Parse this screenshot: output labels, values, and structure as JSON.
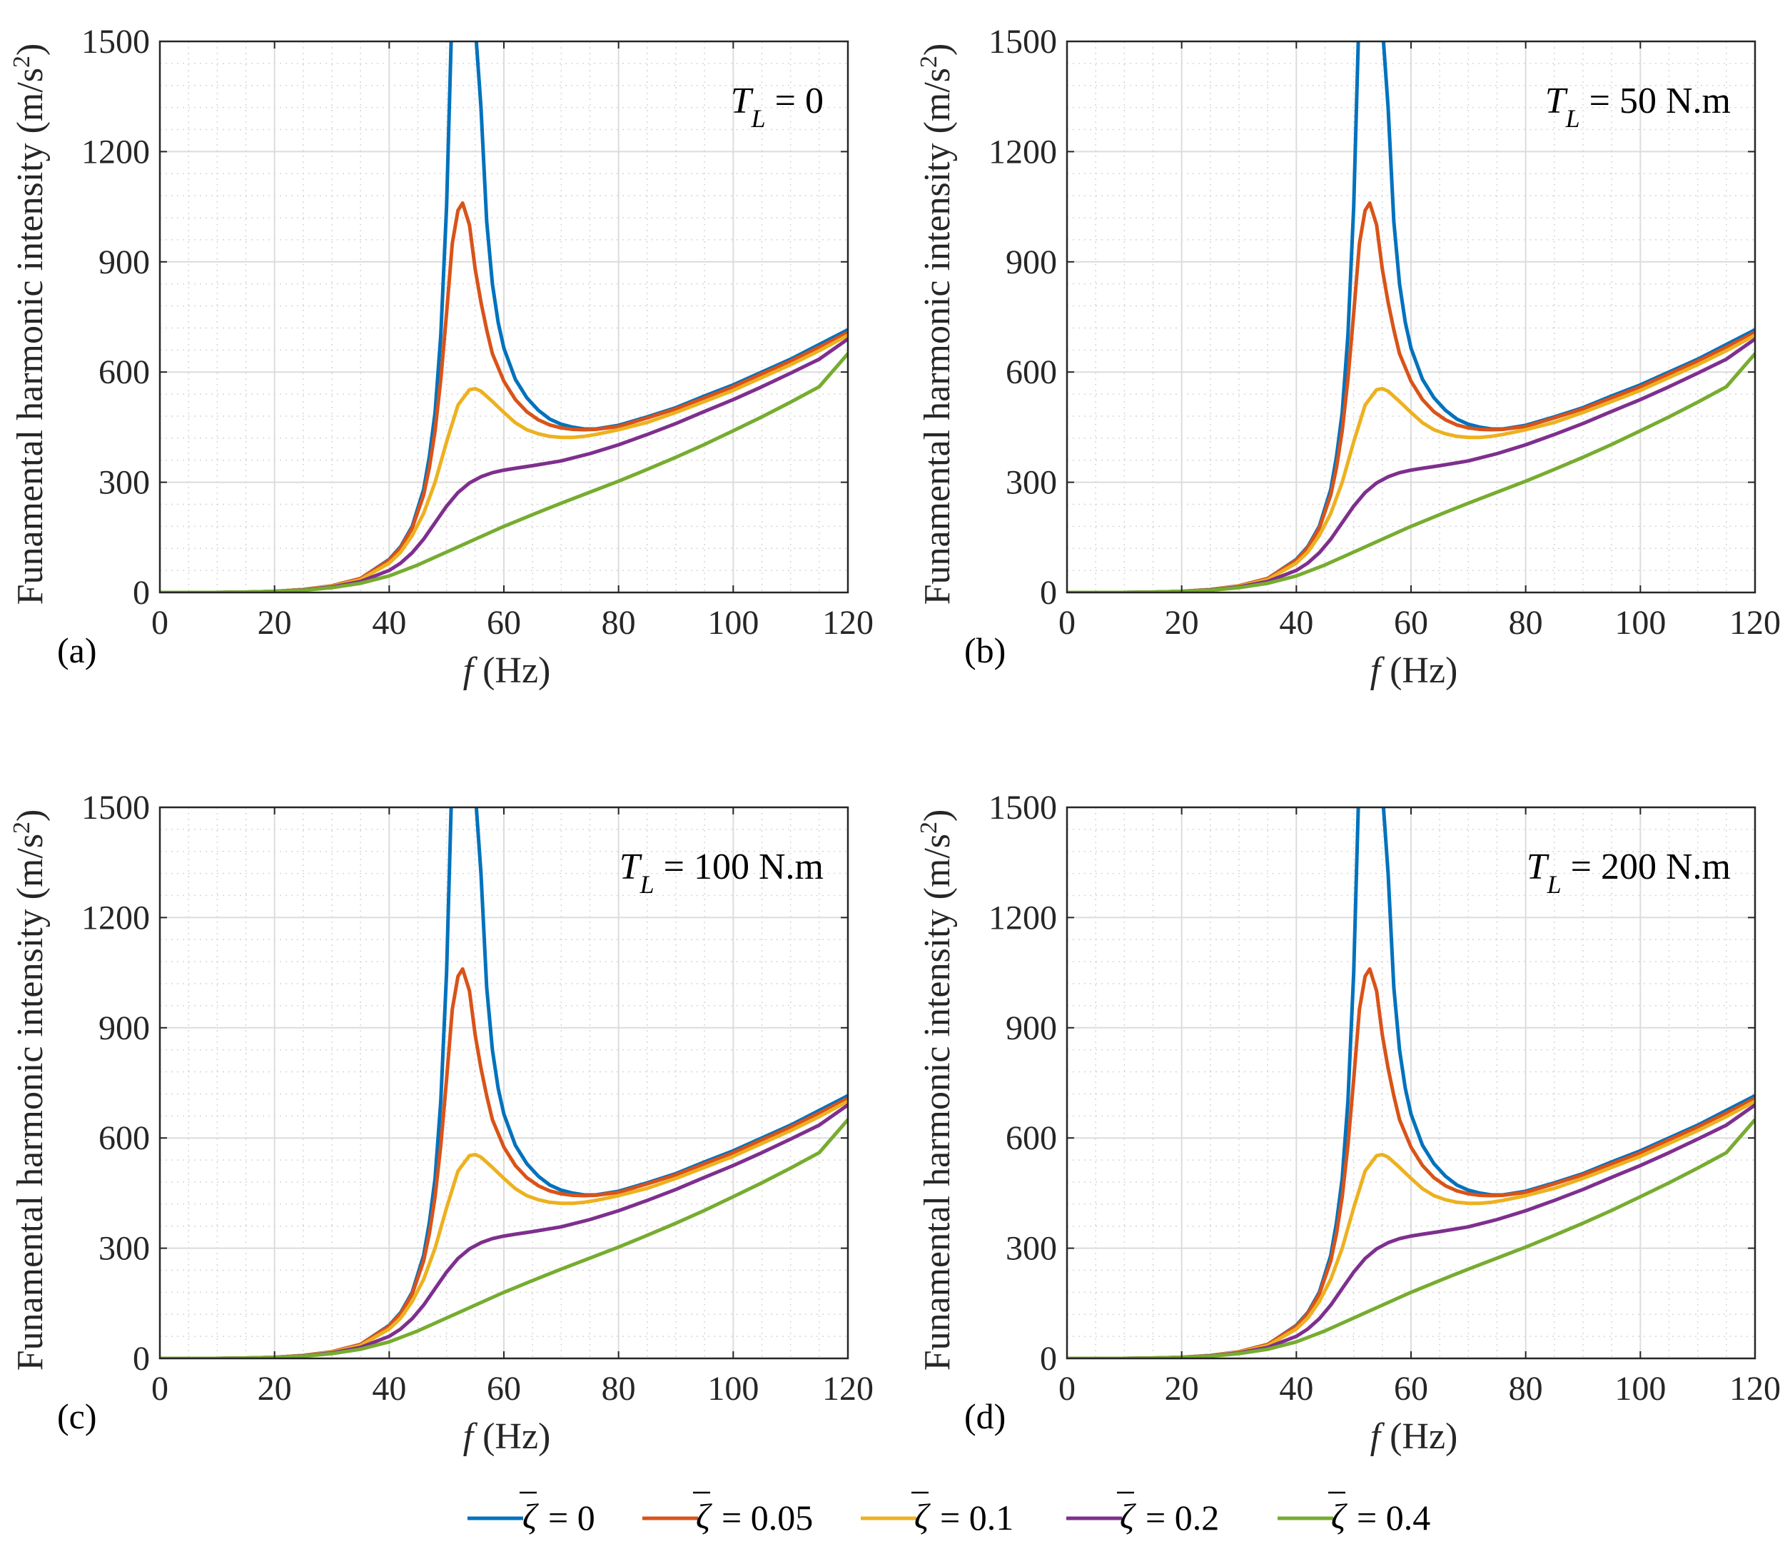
{
  "chart_data": [
    {
      "type": "line",
      "panel_label": "(a)",
      "annotation": {
        "symbol": "T",
        "subscript": "L",
        "value": "= 0"
      },
      "xlabel": {
        "italic": "f",
        "text": "(Hz)"
      },
      "ylabel": {
        "text": "Funamental harmonic intensity (m/s",
        "sup": "2",
        "close": ")"
      },
      "xlim": [
        0,
        120
      ],
      "ylim": [
        0,
        1500
      ],
      "xticks": [
        "0",
        "20",
        "40",
        "60",
        "80",
        "100",
        "120"
      ],
      "yticks": [
        "0",
        "300",
        "600",
        "900",
        "1200",
        "1500"
      ],
      "grid": true
    },
    {
      "type": "line",
      "panel_label": "(b)",
      "annotation": {
        "symbol": "T",
        "subscript": "L",
        "value": "= 50 N.m"
      },
      "xlabel": {
        "italic": "f",
        "text": "(Hz)"
      },
      "ylabel": {
        "text": "Funamental harmonic intensity (m/s",
        "sup": "2",
        "close": ")"
      },
      "xlim": [
        0,
        120
      ],
      "ylim": [
        0,
        1500
      ],
      "xticks": [
        "0",
        "20",
        "40",
        "60",
        "80",
        "100",
        "120"
      ],
      "yticks": [
        "0",
        "300",
        "600",
        "900",
        "1200",
        "1500"
      ],
      "grid": true
    },
    {
      "type": "line",
      "panel_label": "(c)",
      "annotation": {
        "symbol": "T",
        "subscript": "L",
        "value": "= 100 N.m"
      },
      "xlabel": {
        "italic": "f",
        "text": "(Hz)"
      },
      "ylabel": {
        "text": "Funamental harmonic intensity (m/s",
        "sup": "2",
        "close": ")"
      },
      "xlim": [
        0,
        120
      ],
      "ylim": [
        0,
        1500
      ],
      "xticks": [
        "0",
        "20",
        "40",
        "60",
        "80",
        "100",
        "120"
      ],
      "yticks": [
        "0",
        "300",
        "600",
        "900",
        "1200",
        "1500"
      ],
      "grid": true
    },
    {
      "type": "line",
      "panel_label": "(d)",
      "annotation": {
        "symbol": "T",
        "subscript": "L",
        "value": "= 200 N.m"
      },
      "xlabel": {
        "italic": "f",
        "text": "(Hz)"
      },
      "ylabel": {
        "text": "Funamental harmonic intensity (m/s",
        "sup": "2",
        "close": ")"
      },
      "xlim": [
        0,
        120
      ],
      "ylim": [
        0,
        1500
      ],
      "xticks": [
        "0",
        "20",
        "40",
        "60",
        "80",
        "100",
        "120"
      ],
      "yticks": [
        "0",
        "300",
        "600",
        "900",
        "1200",
        "1500"
      ],
      "grid": true
    }
  ],
  "series": [
    {
      "name": "ζ̄ = 0",
      "label_value": "= 0",
      "color": "#0072BD",
      "segments": [
        [
          [
            0,
            0
          ],
          [
            10,
            0
          ],
          [
            15,
            1
          ],
          [
            20,
            3
          ],
          [
            25,
            8
          ],
          [
            30,
            18
          ],
          [
            35,
            38
          ],
          [
            40,
            90
          ],
          [
            42,
            125
          ],
          [
            44,
            180
          ],
          [
            46,
            280
          ],
          [
            47,
            370
          ],
          [
            48,
            490
          ],
          [
            49,
            700
          ],
          [
            50,
            1050
          ],
          [
            50.8,
            1500
          ]
        ],
        [
          [
            55.2,
            1500
          ],
          [
            56,
            1320
          ],
          [
            57,
            1010
          ],
          [
            58,
            840
          ],
          [
            59,
            735
          ],
          [
            60,
            665
          ],
          [
            62,
            580
          ],
          [
            64,
            530
          ],
          [
            66,
            496
          ],
          [
            68,
            472
          ],
          [
            70,
            458
          ],
          [
            72,
            450
          ],
          [
            74,
            445
          ],
          [
            76,
            445
          ],
          [
            80,
            455
          ],
          [
            85,
            478
          ],
          [
            90,
            503
          ],
          [
            95,
            535
          ],
          [
            100,
            565
          ],
          [
            105,
            600
          ],
          [
            110,
            635
          ],
          [
            115,
            675
          ],
          [
            120,
            715
          ]
        ]
      ]
    },
    {
      "name": "ζ̄ = 0.05",
      "label_value": "= 0.05",
      "color": "#D95319",
      "segments": [
        [
          [
            0,
            0
          ],
          [
            10,
            0
          ],
          [
            15,
            1
          ],
          [
            20,
            3
          ],
          [
            25,
            8
          ],
          [
            30,
            18
          ],
          [
            35,
            38
          ],
          [
            40,
            88
          ],
          [
            42,
            122
          ],
          [
            44,
            175
          ],
          [
            46,
            265
          ],
          [
            47,
            340
          ],
          [
            48,
            440
          ],
          [
            49,
            580
          ],
          [
            50,
            760
          ],
          [
            51,
            950
          ],
          [
            52,
            1040
          ],
          [
            52.8,
            1060
          ],
          [
            54,
            1000
          ],
          [
            55,
            880
          ],
          [
            56,
            790
          ],
          [
            57,
            715
          ],
          [
            58,
            650
          ],
          [
            60,
            575
          ],
          [
            62,
            525
          ],
          [
            64,
            492
          ],
          [
            66,
            470
          ],
          [
            68,
            456
          ],
          [
            70,
            448
          ],
          [
            72,
            444
          ],
          [
            74,
            443
          ],
          [
            76,
            444
          ],
          [
            80,
            452
          ],
          [
            85,
            475
          ],
          [
            90,
            500
          ],
          [
            95,
            530
          ],
          [
            100,
            560
          ],
          [
            105,
            595
          ],
          [
            110,
            630
          ],
          [
            115,
            668
          ],
          [
            120,
            708
          ]
        ]
      ]
    },
    {
      "name": "ζ̄ = 0.1",
      "label_value": "= 0.1",
      "color": "#EDB120",
      "segments": [
        [
          [
            0,
            0
          ],
          [
            10,
            0
          ],
          [
            15,
            1
          ],
          [
            20,
            3
          ],
          [
            25,
            8
          ],
          [
            30,
            17
          ],
          [
            35,
            35
          ],
          [
            40,
            80
          ],
          [
            42,
            110
          ],
          [
            44,
            155
          ],
          [
            46,
            215
          ],
          [
            48,
            300
          ],
          [
            50,
            410
          ],
          [
            52,
            510
          ],
          [
            54,
            552
          ],
          [
            55,
            555
          ],
          [
            56,
            548
          ],
          [
            58,
            520
          ],
          [
            60,
            490
          ],
          [
            62,
            462
          ],
          [
            64,
            443
          ],
          [
            66,
            432
          ],
          [
            68,
            425
          ],
          [
            70,
            422
          ],
          [
            72,
            422
          ],
          [
            74,
            425
          ],
          [
            76,
            430
          ],
          [
            80,
            443
          ],
          [
            85,
            463
          ],
          [
            90,
            490
          ],
          [
            95,
            520
          ],
          [
            100,
            550
          ],
          [
            105,
            585
          ],
          [
            110,
            620
          ],
          [
            115,
            658
          ],
          [
            120,
            700
          ]
        ]
      ]
    },
    {
      "name": "ζ̄ = 0.2",
      "label_value": "= 0.2",
      "color": "#7E2F8E",
      "segments": [
        [
          [
            0,
            0
          ],
          [
            10,
            0
          ],
          [
            15,
            1
          ],
          [
            20,
            3
          ],
          [
            25,
            7
          ],
          [
            30,
            15
          ],
          [
            35,
            30
          ],
          [
            40,
            60
          ],
          [
            42,
            80
          ],
          [
            44,
            108
          ],
          [
            46,
            145
          ],
          [
            48,
            190
          ],
          [
            50,
            235
          ],
          [
            52,
            272
          ],
          [
            54,
            298
          ],
          [
            56,
            315
          ],
          [
            58,
            326
          ],
          [
            60,
            333
          ],
          [
            62,
            338
          ],
          [
            65,
            345
          ],
          [
            70,
            358
          ],
          [
            75,
            378
          ],
          [
            80,
            402
          ],
          [
            85,
            430
          ],
          [
            90,
            460
          ],
          [
            95,
            493
          ],
          [
            100,
            525
          ],
          [
            105,
            560
          ],
          [
            110,
            597
          ],
          [
            115,
            635
          ],
          [
            120,
            690
          ]
        ]
      ]
    },
    {
      "name": "ζ̄ = 0.4",
      "label_value": "= 0.4",
      "color": "#77AC30",
      "segments": [
        [
          [
            0,
            0
          ],
          [
            10,
            0
          ],
          [
            15,
            1
          ],
          [
            20,
            3
          ],
          [
            25,
            6
          ],
          [
            30,
            13
          ],
          [
            35,
            25
          ],
          [
            40,
            45
          ],
          [
            45,
            75
          ],
          [
            50,
            110
          ],
          [
            55,
            145
          ],
          [
            60,
            180
          ],
          [
            65,
            212
          ],
          [
            70,
            243
          ],
          [
            75,
            273
          ],
          [
            80,
            303
          ],
          [
            85,
            335
          ],
          [
            90,
            368
          ],
          [
            95,
            403
          ],
          [
            100,
            440
          ],
          [
            105,
            478
          ],
          [
            110,
            518
          ],
          [
            115,
            560
          ],
          [
            120,
            650
          ]
        ]
      ]
    }
  ]
}
